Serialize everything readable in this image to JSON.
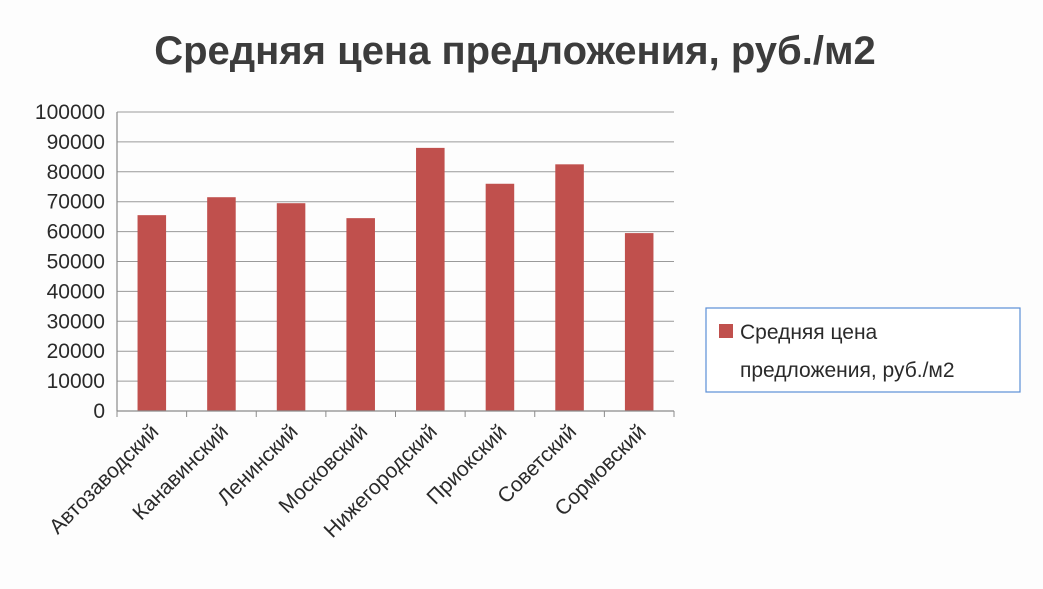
{
  "chart_data": {
    "type": "bar",
    "title": "Средняя цена предложения, руб./м2",
    "xlabel": "",
    "ylabel": "",
    "categories": [
      "Автозаводский",
      "Канавинский",
      "Ленинский",
      "Московский",
      "Нижегородский",
      "Приокский",
      "Советский",
      "Сормовский"
    ],
    "series": [
      {
        "name": "Средняя цена предложения, руб./м2",
        "values": [
          65500,
          71500,
          69500,
          64500,
          88000,
          76000,
          82500,
          59500
        ],
        "color": "#c0504d"
      }
    ],
    "ylim": [
      0,
      100000
    ],
    "yticks": [
      0,
      10000,
      20000,
      30000,
      40000,
      50000,
      60000,
      70000,
      80000,
      90000,
      100000
    ],
    "grid": true,
    "legend": {
      "position": "right",
      "lines": [
        "Средняя цена",
        "предложения, руб./м2"
      ]
    },
    "colors": {
      "bar": "#c0504d",
      "grid": "#9a9a9a",
      "legend_border": "#5b8fd6"
    }
  }
}
